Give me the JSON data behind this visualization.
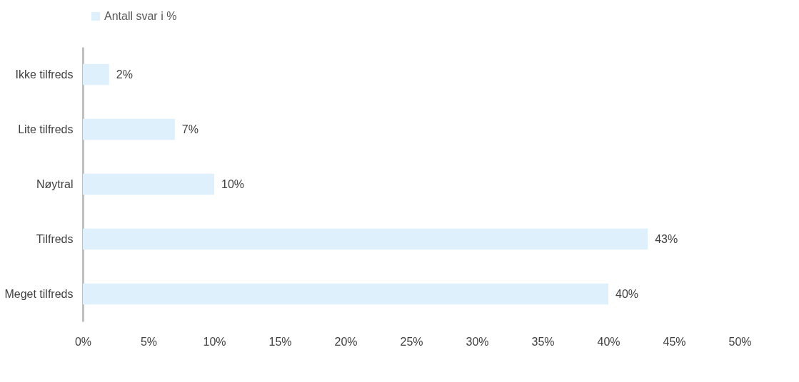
{
  "chart_data": {
    "type": "bar",
    "orientation": "horizontal",
    "categories": [
      "Ikke tilfreds",
      "Lite tilfreds",
      "Nøytral",
      "Tilfreds",
      "Meget tilfreds"
    ],
    "series": [
      {
        "name": "Antall svar i %",
        "color": "#ddf0fc",
        "values": [
          2,
          7,
          10,
          43,
          40
        ],
        "value_labels": [
          "2%",
          "7%",
          "10%",
          "43%",
          "40%"
        ]
      }
    ],
    "xlim": [
      0,
      50
    ],
    "xticks": [
      {
        "value": 0,
        "label": "0%"
      },
      {
        "value": 5,
        "label": "5%"
      },
      {
        "value": 10,
        "label": "10%"
      },
      {
        "value": 15,
        "label": "15%"
      },
      {
        "value": 20,
        "label": "20%"
      },
      {
        "value": 25,
        "label": "25%"
      },
      {
        "value": 30,
        "label": "30%"
      },
      {
        "value": 35,
        "label": "35%"
      },
      {
        "value": 40,
        "label": "40%"
      },
      {
        "value": 45,
        "label": "45%"
      },
      {
        "value": 50,
        "label": "50%"
      }
    ],
    "grid": false,
    "legend": "top"
  }
}
